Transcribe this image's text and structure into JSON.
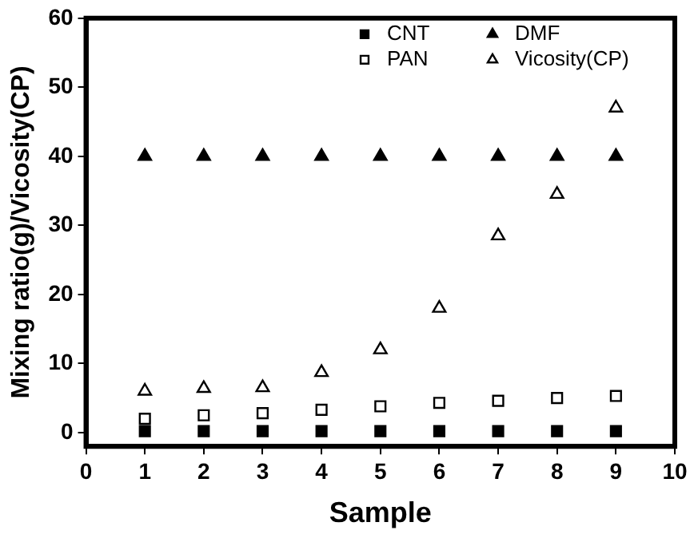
{
  "chart_data": {
    "type": "scatter",
    "xlabel": "Sample",
    "ylabel": "Mixing ratio(g)/Vicosity(CP)",
    "x": [
      1,
      2,
      3,
      4,
      5,
      6,
      7,
      8,
      9
    ],
    "xlim": [
      0,
      10
    ],
    "xticks": [
      0,
      1,
      2,
      3,
      4,
      5,
      6,
      7,
      8,
      9,
      10
    ],
    "ylim": [
      -2,
      60
    ],
    "yticks": [
      0,
      10,
      20,
      30,
      40,
      50,
      60
    ],
    "grid": false,
    "legend": "top right",
    "series": [
      {
        "name": "CNT",
        "color": "#000000",
        "marker": "square",
        "values": [
          0.2,
          0.2,
          0.2,
          0.2,
          0.2,
          0.2,
          0.2,
          0.2,
          0.2
        ]
      },
      {
        "name": "DMF",
        "color": "#000000",
        "marker": "triangle",
        "values": [
          40,
          40,
          40,
          40,
          40,
          40,
          40,
          40,
          40
        ]
      },
      {
        "name": "PAN",
        "color": "#000000",
        "marker": "square",
        "values": [
          2,
          2.5,
          2.8,
          3.3,
          3.8,
          4.3,
          4.6,
          5,
          5.3
        ]
      },
      {
        "name": "Vicosity(CP)",
        "color": "#000000",
        "marker": "triangle",
        "values": [
          6,
          6.4,
          6.5,
          8.7,
          12,
          18,
          28.5,
          34.5,
          47
        ]
      }
    ]
  }
}
